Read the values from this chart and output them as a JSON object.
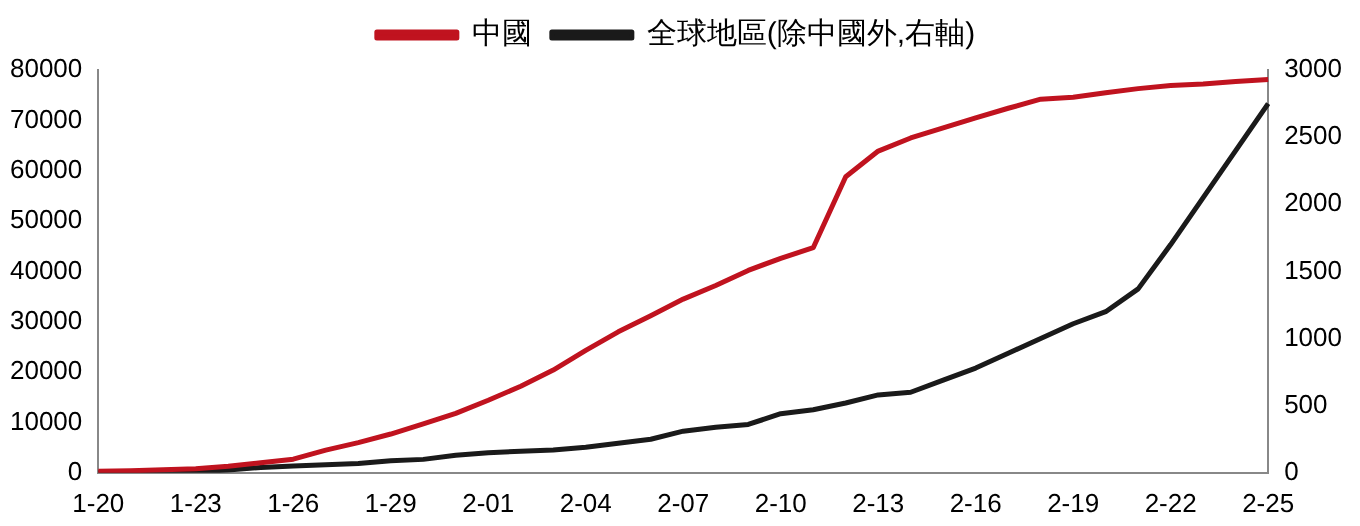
{
  "chart_data": {
    "type": "line",
    "categories": [
      "1-20",
      null,
      null,
      "1-23",
      null,
      null,
      "1-26",
      null,
      null,
      "1-29",
      null,
      null,
      "2-01",
      null,
      null,
      "2-04",
      null,
      null,
      "2-07",
      null,
      null,
      "2-10",
      null,
      null,
      "2-13",
      null,
      null,
      "2-16",
      null,
      null,
      "2-19",
      null,
      null,
      "2-22",
      null,
      null,
      "2-25"
    ],
    "series": [
      {
        "name": "中國",
        "color": "#c0131f",
        "values": [
          300,
          400,
          600,
          800,
          1300,
          2000,
          2700,
          4500,
          6000,
          7700,
          9700,
          11800,
          14400,
          17200,
          20400,
          24300,
          28000,
          31200,
          34500,
          37200,
          40200,
          42600,
          44700,
          58800,
          63900,
          66500,
          68500,
          70500,
          72400,
          74200,
          74600,
          75500,
          76300,
          76900,
          77200,
          77700,
          78100
        ]
      },
      {
        "name": "全球地區(除中國外,右軸)",
        "color": "#1a1a1a",
        "axis": "y2",
        "values": [
          0,
          10,
          10,
          10,
          20,
          40,
          50,
          60,
          70,
          90,
          100,
          130,
          150,
          160,
          170,
          190,
          220,
          250,
          310,
          340,
          360,
          440,
          470,
          520,
          580,
          600,
          690,
          780,
          890,
          1000,
          1110,
          1200,
          1370,
          1700,
          2050,
          2400,
          2750
        ]
      }
    ],
    "ylim": [
      0,
      80000
    ],
    "yticks": [
      0,
      10000,
      20000,
      30000,
      40000,
      50000,
      60000,
      70000,
      80000
    ],
    "y2lim": [
      0,
      3000
    ],
    "y2ticks": [
      0,
      500,
      1000,
      1500,
      2000,
      2500,
      3000
    ],
    "grid": false,
    "legend": "top",
    "marker": "none",
    "line_style": "solid"
  }
}
